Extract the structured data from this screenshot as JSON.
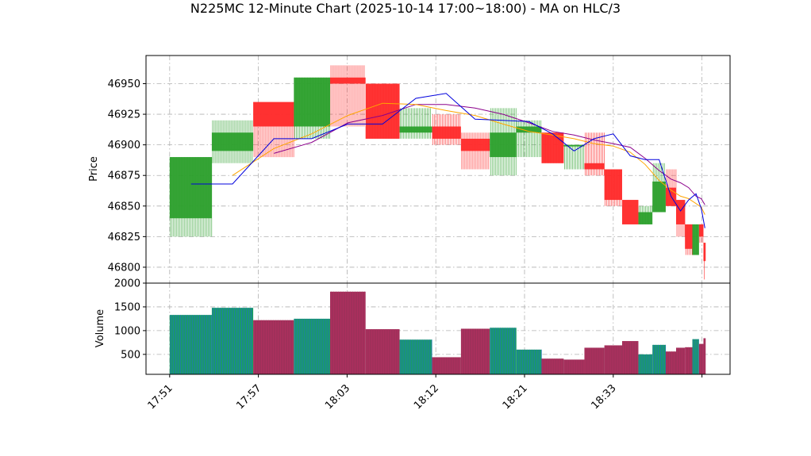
{
  "title": "N225MC 12-Minute Chart (2025-10-14 17:00~18:00) - MA on HLC/3",
  "colors": {
    "up": "#2ca02c",
    "down": "#ff2a2a",
    "ma_short": "#0000dd",
    "ma_mid": "#ffa500",
    "ma_long": "#8b008b",
    "vol_edge_up": "#1f77b4",
    "vol_edge_down": "#b03060"
  },
  "chart_data": [
    {
      "type": "candlestick",
      "ylabel": "Price",
      "ylim": [
        46787,
        46973
      ],
      "yticks": [
        "46800",
        "46825",
        "46850",
        "46875",
        "46900",
        "46925",
        "46950"
      ],
      "xlim": [
        -3.2,
        75.8
      ],
      "grid": true,
      "xtick_positions": [
        0,
        12,
        24,
        36,
        48,
        60,
        72
      ],
      "xtick_labels": [
        "17:51",
        "17:57",
        "18:03",
        "18:12",
        "18:21",
        "18:33",
        ""
      ],
      "candles": [
        {
          "x0": 0,
          "x1": 5.7,
          "open": 46840,
          "high": 46890,
          "low": 46825,
          "close": 46890
        },
        {
          "x0": 5.7,
          "x1": 11.3,
          "open": 46895,
          "high": 46920,
          "low": 46885,
          "close": 46910
        },
        {
          "x0": 11.3,
          "x1": 16.8,
          "open": 46935,
          "high": 46935,
          "low": 46890,
          "close": 46915
        },
        {
          "x0": 16.8,
          "x1": 21.7,
          "open": 46915,
          "high": 46955,
          "low": 46905,
          "close": 46955
        },
        {
          "x0": 21.7,
          "x1": 26.5,
          "open": 46955,
          "high": 46965,
          "low": 46915,
          "close": 46950
        },
        {
          "x0": 26.5,
          "x1": 31.1,
          "open": 46950,
          "high": 46950,
          "low": 46905,
          "close": 46905
        },
        {
          "x0": 31.1,
          "x1": 35.5,
          "open": 46910,
          "high": 46930,
          "low": 46905,
          "close": 46915
        },
        {
          "x0": 35.5,
          "x1": 39.4,
          "open": 46915,
          "high": 46925,
          "low": 46900,
          "close": 46905
        },
        {
          "x0": 39.4,
          "x1": 43.3,
          "open": 46905,
          "high": 46910,
          "low": 46880,
          "close": 46895
        },
        {
          "x0": 43.3,
          "x1": 46.9,
          "open": 46890,
          "high": 46930,
          "low": 46875,
          "close": 46910
        },
        {
          "x0": 46.9,
          "x1": 50.3,
          "open": 46910,
          "high": 46920,
          "low": 46890,
          "close": 46915
        },
        {
          "x0": 50.3,
          "x1": 53.3,
          "open": 46910,
          "high": 46910,
          "low": 46885,
          "close": 46885
        },
        {
          "x0": 53.3,
          "x1": 56.1,
          "open": 46900,
          "high": 46900,
          "low": 46880,
          "close": 46900
        },
        {
          "x0": 56.1,
          "x1": 58.8,
          "open": 46885,
          "high": 46910,
          "low": 46875,
          "close": 46880
        },
        {
          "x0": 58.8,
          "x1": 61.2,
          "open": 46880,
          "high": 46880,
          "low": 46850,
          "close": 46855
        },
        {
          "x0": 61.2,
          "x1": 63.4,
          "open": 46855,
          "high": 46855,
          "low": 46835,
          "close": 46835
        },
        {
          "x0": 63.4,
          "x1": 65.3,
          "open": 46835,
          "high": 46850,
          "low": 46835,
          "close": 46845
        },
        {
          "x0": 65.3,
          "x1": 67.1,
          "open": 46845,
          "high": 46885,
          "low": 46845,
          "close": 46870
        },
        {
          "x0": 67.1,
          "x1": 68.5,
          "open": 46865,
          "high": 46880,
          "low": 46850,
          "close": 46850
        },
        {
          "x0": 68.5,
          "x1": 69.7,
          "open": 46855,
          "high": 46855,
          "low": 46825,
          "close": 46835
        },
        {
          "x0": 69.7,
          "x1": 70.7,
          "open": 46835,
          "high": 46835,
          "low": 46810,
          "close": 46815
        },
        {
          "x0": 70.7,
          "x1": 71.6,
          "open": 46810,
          "high": 46835,
          "low": 46810,
          "close": 46835
        },
        {
          "x0": 71.6,
          "x1": 72.2,
          "open": 46835,
          "high": 46835,
          "low": 46820,
          "close": 46825
        },
        {
          "x0": 72.2,
          "x1": 72.5,
          "open": 46820,
          "high": 46820,
          "low": 46790,
          "close": 46805
        }
      ],
      "ma_short": [
        [
          2.9,
          46868
        ],
        [
          8.5,
          46868
        ],
        [
          14.1,
          46905
        ],
        [
          19.2,
          46905
        ],
        [
          24.1,
          46917
        ],
        [
          28.8,
          46917
        ],
        [
          33.3,
          46938
        ],
        [
          37.4,
          46942
        ],
        [
          41.3,
          46921
        ],
        [
          45.1,
          46920
        ],
        [
          48.6,
          46919
        ],
        [
          51.8,
          46909
        ],
        [
          54.7,
          46895
        ],
        [
          57.4,
          46905
        ],
        [
          60.0,
          46909
        ],
        [
          62.3,
          46891
        ],
        [
          64.3,
          46888
        ],
        [
          66.2,
          46888
        ],
        [
          67.8,
          46858
        ],
        [
          69.1,
          46846
        ],
        [
          70.2,
          46855
        ],
        [
          71.2,
          46860
        ],
        [
          71.9,
          46848
        ],
        [
          72.4,
          46832
        ]
      ],
      "ma_mid": [
        [
          8.5,
          46875
        ],
        [
          14.1,
          46897
        ],
        [
          19.2,
          46909
        ],
        [
          24.1,
          46924
        ],
        [
          28.8,
          46934
        ],
        [
          33.3,
          46933
        ],
        [
          37.4,
          46928
        ],
        [
          41.3,
          46924
        ],
        [
          45.1,
          46917
        ],
        [
          48.6,
          46911
        ],
        [
          51.8,
          46908
        ],
        [
          54.7,
          46905
        ],
        [
          57.4,
          46901
        ],
        [
          60.0,
          46899
        ],
        [
          62.3,
          46894
        ],
        [
          64.3,
          46884
        ],
        [
          66.2,
          46871
        ],
        [
          67.8,
          46863
        ],
        [
          69.1,
          46858
        ],
        [
          70.2,
          46856
        ],
        [
          71.2,
          46852
        ],
        [
          71.9,
          46849
        ],
        [
          72.4,
          46843
        ]
      ],
      "ma_long": [
        [
          14.1,
          46893
        ],
        [
          19.2,
          46902
        ],
        [
          24.1,
          46918
        ],
        [
          28.8,
          46924
        ],
        [
          33.3,
          46933
        ],
        [
          37.4,
          46933
        ],
        [
          41.3,
          46930
        ],
        [
          45.1,
          46925
        ],
        [
          48.6,
          46918
        ],
        [
          51.8,
          46911
        ],
        [
          54.7,
          46908
        ],
        [
          57.4,
          46904
        ],
        [
          60.0,
          46901
        ],
        [
          62.3,
          46898
        ],
        [
          64.3,
          46889
        ],
        [
          66.2,
          46879
        ],
        [
          67.8,
          46872
        ],
        [
          69.1,
          46869
        ],
        [
          70.2,
          46865
        ],
        [
          71.2,
          46858
        ],
        [
          71.9,
          46856
        ],
        [
          72.4,
          46851
        ]
      ]
    },
    {
      "type": "bar",
      "ylabel": "Volume",
      "ylim": [
        80,
        2000
      ],
      "yticks": [
        "500",
        "1000",
        "1500",
        "2000"
      ],
      "bars": [
        {
          "x0": 0,
          "x1": 5.7,
          "value": 1330,
          "dir": "up"
        },
        {
          "x0": 5.7,
          "x1": 11.3,
          "value": 1480,
          "dir": "up"
        },
        {
          "x0": 11.3,
          "x1": 16.8,
          "value": 1220,
          "dir": "down"
        },
        {
          "x0": 16.8,
          "x1": 21.7,
          "value": 1250,
          "dir": "up"
        },
        {
          "x0": 21.7,
          "x1": 26.5,
          "value": 1820,
          "dir": "down"
        },
        {
          "x0": 26.5,
          "x1": 31.1,
          "value": 1030,
          "dir": "down"
        },
        {
          "x0": 31.1,
          "x1": 35.5,
          "value": 810,
          "dir": "up"
        },
        {
          "x0": 35.5,
          "x1": 39.4,
          "value": 440,
          "dir": "down"
        },
        {
          "x0": 39.4,
          "x1": 43.3,
          "value": 1040,
          "dir": "down"
        },
        {
          "x0": 43.3,
          "x1": 46.9,
          "value": 1060,
          "dir": "up"
        },
        {
          "x0": 46.9,
          "x1": 50.3,
          "value": 600,
          "dir": "up"
        },
        {
          "x0": 50.3,
          "x1": 53.3,
          "value": 410,
          "dir": "down"
        },
        {
          "x0": 53.3,
          "x1": 56.1,
          "value": 390,
          "dir": "down"
        },
        {
          "x0": 56.1,
          "x1": 58.8,
          "value": 640,
          "dir": "down"
        },
        {
          "x0": 58.8,
          "x1": 61.2,
          "value": 690,
          "dir": "down"
        },
        {
          "x0": 61.2,
          "x1": 63.4,
          "value": 780,
          "dir": "down"
        },
        {
          "x0": 63.4,
          "x1": 65.3,
          "value": 500,
          "dir": "up"
        },
        {
          "x0": 65.3,
          "x1": 67.1,
          "value": 700,
          "dir": "up"
        },
        {
          "x0": 67.1,
          "x1": 68.5,
          "value": 560,
          "dir": "down"
        },
        {
          "x0": 68.5,
          "x1": 69.7,
          "value": 640,
          "dir": "down"
        },
        {
          "x0": 69.7,
          "x1": 70.7,
          "value": 650,
          "dir": "down"
        },
        {
          "x0": 70.7,
          "x1": 71.6,
          "value": 820,
          "dir": "up"
        },
        {
          "x0": 71.6,
          "x1": 72.2,
          "value": 720,
          "dir": "down"
        },
        {
          "x0": 72.2,
          "x1": 72.5,
          "value": 840,
          "dir": "down"
        }
      ]
    }
  ]
}
